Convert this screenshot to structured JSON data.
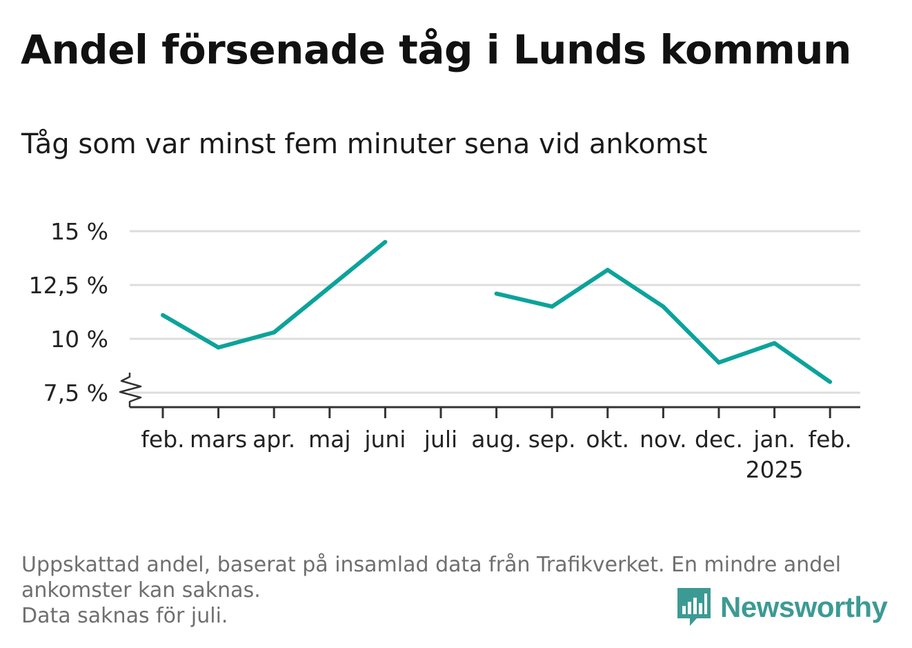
{
  "title": "Andel försenade tåg i Lunds kommun",
  "subtitle": "Tåg som var minst fem minuter sena vid ankomst",
  "footer": {
    "line1": "Uppskattad andel, baserat på insamlad data från Trafikverket. En mindre andel",
    "line2": "ankomster kan saknas.",
    "line3": "Data saknas för juli."
  },
  "brand": {
    "name": "Newsworthy",
    "icon": "bar-chart-speech-icon",
    "color": "#3c9a94"
  },
  "colors": {
    "line": "#0ba39a",
    "grid": "#dddddd",
    "axis": "#333333"
  },
  "chart_data": {
    "type": "line",
    "categories": [
      "feb.",
      "mars",
      "apr.",
      "maj",
      "juni",
      "juli",
      "aug.",
      "sep.",
      "okt.",
      "nov.",
      "dec.",
      "jan.",
      "feb."
    ],
    "year_label": {
      "index": 11,
      "text": "2025"
    },
    "values": [
      11.1,
      9.6,
      10.3,
      12.4,
      14.5,
      null,
      12.1,
      11.5,
      13.2,
      11.5,
      8.9,
      9.8,
      8.0
    ],
    "ylim": [
      6.8,
      15
    ],
    "yticks": [
      7.5,
      10,
      12.5,
      15
    ],
    "ytick_labels": [
      "7,5 %",
      "10 %",
      "12,5 %",
      "15 %"
    ],
    "axis_break": true,
    "grid": true,
    "xlabel": "",
    "ylabel": ""
  }
}
